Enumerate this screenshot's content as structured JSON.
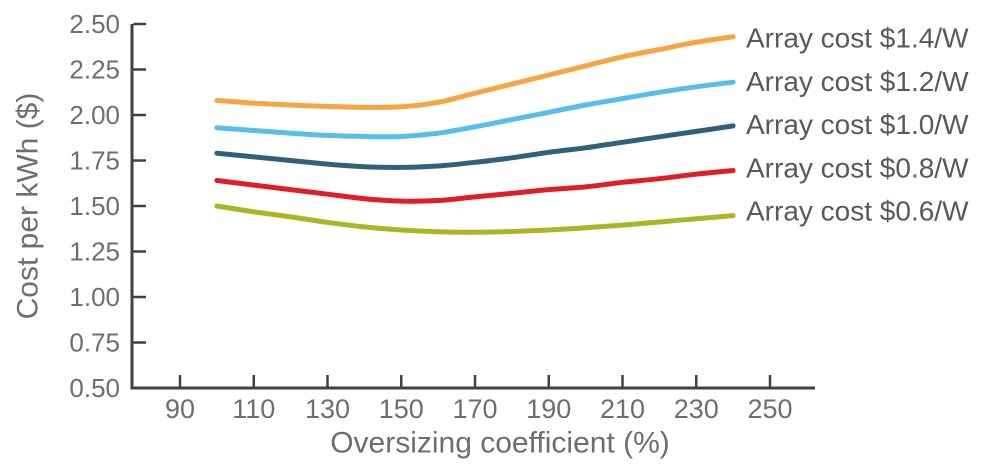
{
  "chart_data": {
    "type": "line",
    "title": "",
    "xlabel": "Oversizing coefficient (%)",
    "ylabel": "Cost per kWh ($)",
    "x_ticks": [
      90,
      110,
      130,
      150,
      170,
      190,
      210,
      230,
      250
    ],
    "y_ticks": [
      0.5,
      0.75,
      1.0,
      1.25,
      1.5,
      1.75,
      2.0,
      2.25,
      2.5
    ],
    "xlim": [
      77,
      262
    ],
    "ylim": [
      0.5,
      2.5
    ],
    "grid": false,
    "legend_position": "right-of-lines",
    "x": [
      100,
      110,
      120,
      130,
      140,
      150,
      160,
      170,
      180,
      190,
      200,
      210,
      220,
      230,
      240
    ],
    "series": [
      {
        "name": "Array cost $1.4/W",
        "color": "#F7A541",
        "values": [
          2.08,
          2.065,
          2.055,
          2.047,
          2.042,
          2.045,
          2.07,
          2.12,
          2.17,
          2.22,
          2.27,
          2.32,
          2.36,
          2.4,
          2.43
        ]
      },
      {
        "name": "Array cost $1.2/W",
        "color": "#55BEEB",
        "values": [
          1.93,
          1.915,
          1.9,
          1.888,
          1.882,
          1.882,
          1.9,
          1.935,
          1.975,
          2.015,
          2.055,
          2.09,
          2.125,
          2.155,
          2.18
        ]
      },
      {
        "name": "Array cost $1.0/W",
        "color": "#30617B",
        "values": [
          1.79,
          1.77,
          1.75,
          1.73,
          1.716,
          1.712,
          1.72,
          1.74,
          1.765,
          1.795,
          1.82,
          1.85,
          1.88,
          1.91,
          1.94
        ]
      },
      {
        "name": "Array cost $0.8/W",
        "color": "#E01E25",
        "values": [
          1.64,
          1.615,
          1.59,
          1.565,
          1.54,
          1.527,
          1.53,
          1.55,
          1.57,
          1.59,
          1.605,
          1.63,
          1.65,
          1.675,
          1.695
        ]
      },
      {
        "name": "Array cost $0.6/W",
        "color": "#A9B725",
        "values": [
          1.5,
          1.468,
          1.44,
          1.41,
          1.385,
          1.368,
          1.358,
          1.356,
          1.36,
          1.368,
          1.38,
          1.395,
          1.412,
          1.43,
          1.447
        ]
      }
    ]
  },
  "style": {
    "background": "#FFFFFF",
    "axis_color": "#414042",
    "tick_label_color": "#6D6E71",
    "axis_title_color": "#6D6E71",
    "legend_text_color": "#58595B"
  }
}
